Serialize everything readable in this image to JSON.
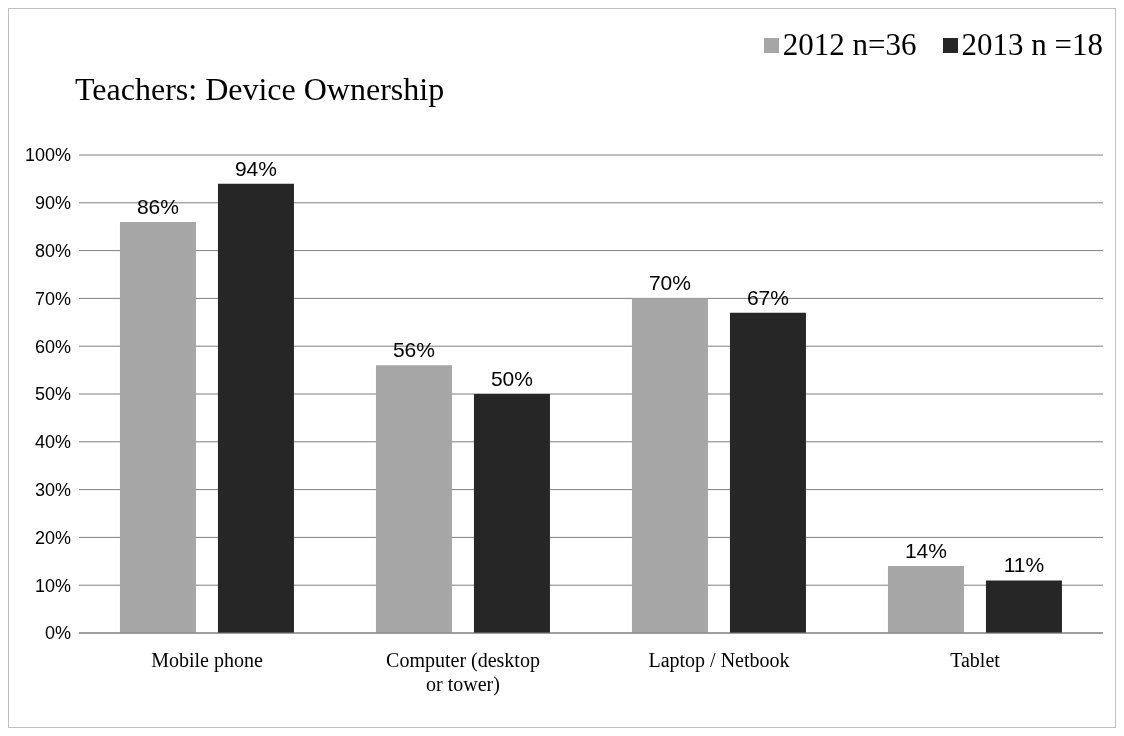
{
  "chart_data": {
    "type": "bar",
    "title": "Teachers: Device Ownership",
    "categories": [
      "Mobile phone",
      "Computer (desktop or tower)",
      "Laptop / Netbook",
      "Tablet"
    ],
    "series": [
      {
        "name": "2012 n=36",
        "color": "#a6a6a6",
        "values": [
          86,
          56,
          70,
          14
        ],
        "value_labels": [
          "86%",
          "56%",
          "70%",
          "14%"
        ]
      },
      {
        "name": "2013 n =18",
        "color": "#262626",
        "values": [
          94,
          50,
          67,
          11
        ],
        "value_labels": [
          "94%",
          "50%",
          "67%",
          "11%"
        ]
      }
    ],
    "ylim": [
      0,
      100
    ],
    "yticks": [
      {
        "value": 0,
        "label": "0%"
      },
      {
        "value": 10,
        "label": "10%"
      },
      {
        "value": 20,
        "label": "20%"
      },
      {
        "value": 30,
        "label": "30%"
      },
      {
        "value": 40,
        "label": "40%"
      },
      {
        "value": 50,
        "label": "50%"
      },
      {
        "value": 60,
        "label": "60%"
      },
      {
        "value": 70,
        "label": "70%"
      },
      {
        "value": 80,
        "label": "80%"
      },
      {
        "value": 90,
        "label": "90%"
      },
      {
        "value": 100,
        "label": "100%"
      }
    ],
    "grid": "y",
    "legend": "top right"
  }
}
